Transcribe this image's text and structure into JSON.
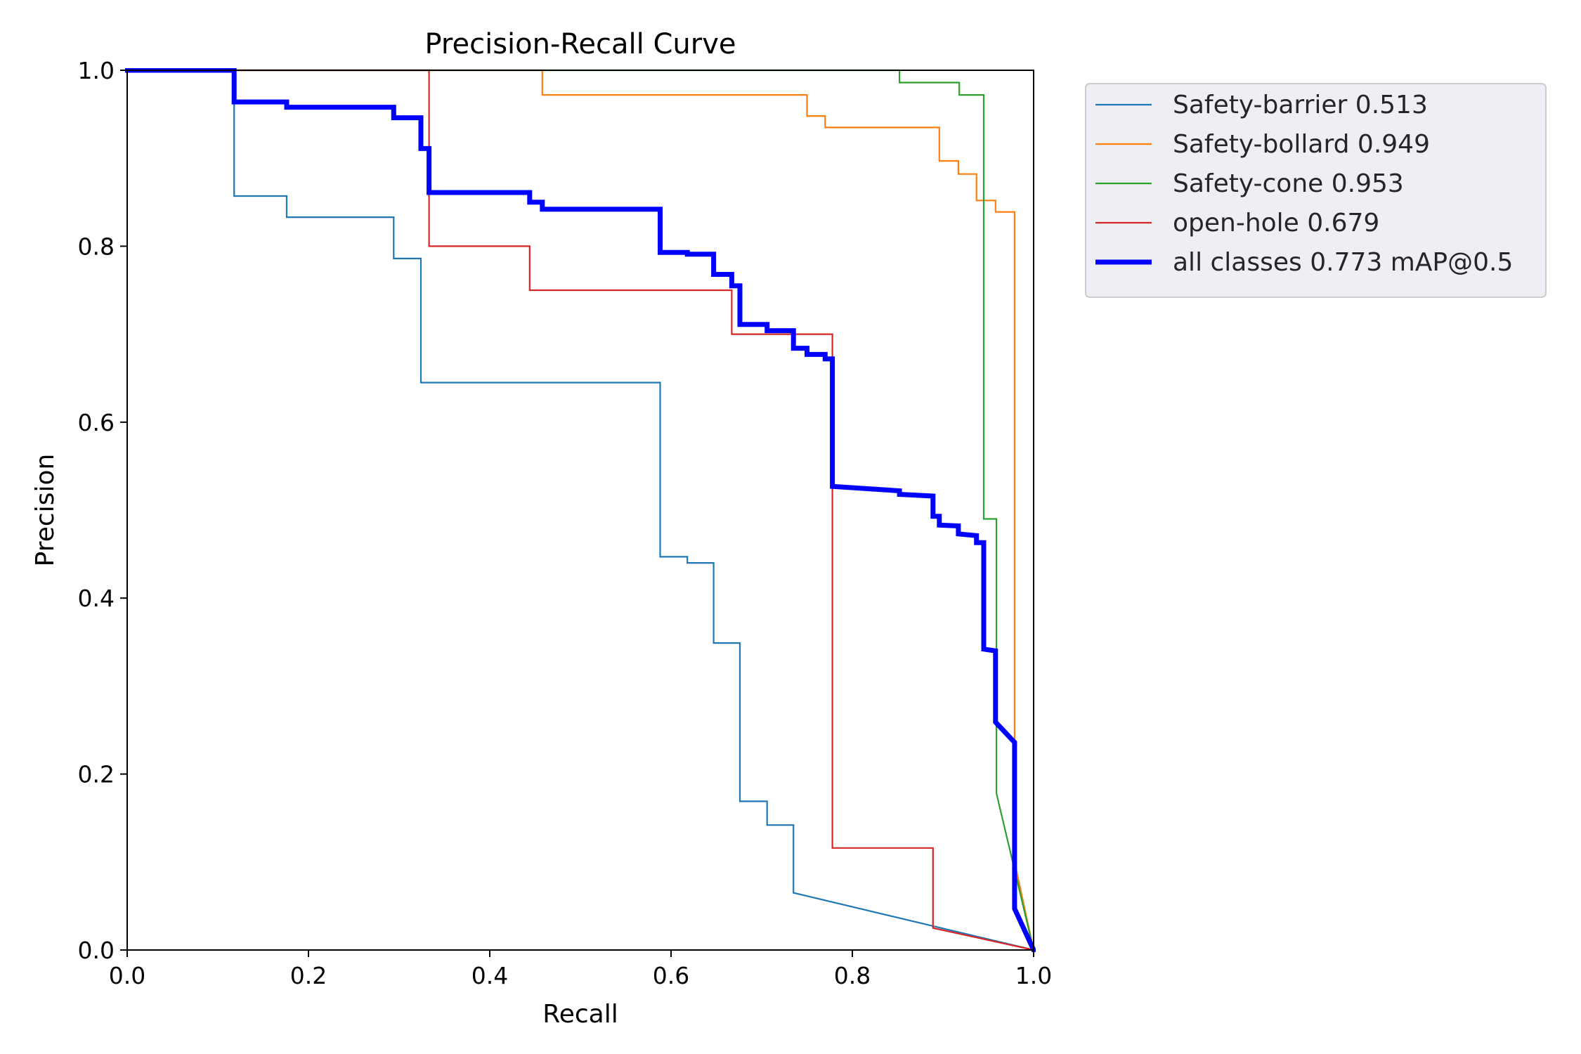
{
  "chart_data": {
    "type": "line",
    "title": "Precision-Recall Curve",
    "xlabel": "Recall",
    "ylabel": "Precision",
    "xlim": [
      0,
      1
    ],
    "ylim": [
      0,
      1
    ],
    "xticks": [
      "0.0",
      "0.2",
      "0.4",
      "0.6",
      "0.8",
      "1.0"
    ],
    "yticks": [
      "0.0",
      "0.2",
      "0.4",
      "0.6",
      "0.8",
      "1.0"
    ],
    "grid": false,
    "legend_position": "outside-right-top",
    "series": [
      {
        "name": "Safety-barrier 0.513",
        "color": "#1f77b4",
        "width": "thin",
        "points": [
          [
            0,
            1
          ],
          [
            0.118,
            1
          ],
          [
            0.118,
            0.857
          ],
          [
            0.176,
            0.857
          ],
          [
            0.176,
            0.833
          ],
          [
            0.294,
            0.833
          ],
          [
            0.294,
            0.786
          ],
          [
            0.324,
            0.786
          ],
          [
            0.324,
            0.645
          ],
          [
            0.588,
            0.645
          ],
          [
            0.588,
            0.447
          ],
          [
            0.618,
            0.447
          ],
          [
            0.618,
            0.44
          ],
          [
            0.647,
            0.44
          ],
          [
            0.647,
            0.349
          ],
          [
            0.676,
            0.349
          ],
          [
            0.676,
            0.169
          ],
          [
            0.706,
            0.169
          ],
          [
            0.706,
            0.142
          ],
          [
            0.735,
            0.142
          ],
          [
            0.735,
            0.065
          ],
          [
            1,
            0
          ]
        ]
      },
      {
        "name": "Safety-bollard 0.949",
        "color": "#ff7f0e",
        "width": "thin",
        "points": [
          [
            0,
            1
          ],
          [
            0.458,
            1
          ],
          [
            0.458,
            0.972
          ],
          [
            0.75,
            0.972
          ],
          [
            0.75,
            0.948
          ],
          [
            0.77,
            0.948
          ],
          [
            0.77,
            0.935
          ],
          [
            0.896,
            0.935
          ],
          [
            0.896,
            0.897
          ],
          [
            0.917,
            0.897
          ],
          [
            0.917,
            0.882
          ],
          [
            0.937,
            0.882
          ],
          [
            0.937,
            0.852
          ],
          [
            0.958,
            0.852
          ],
          [
            0.958,
            0.839
          ],
          [
            0.979,
            0.839
          ],
          [
            0.979,
            0.1
          ],
          [
            1,
            0
          ]
        ]
      },
      {
        "name": "Safety-cone 0.953",
        "color": "#2ca02c",
        "width": "thin",
        "points": [
          [
            0,
            1
          ],
          [
            0.852,
            1
          ],
          [
            0.852,
            0.986
          ],
          [
            0.918,
            0.986
          ],
          [
            0.918,
            0.972
          ],
          [
            0.945,
            0.972
          ],
          [
            0.945,
            0.49
          ],
          [
            0.959,
            0.49
          ],
          [
            0.959,
            0.178
          ],
          [
            1,
            0
          ]
        ]
      },
      {
        "name": "open-hole 0.679",
        "color": "#d62728",
        "width": "thin",
        "points": [
          [
            0,
            1
          ],
          [
            0.333,
            1
          ],
          [
            0.333,
            0.8
          ],
          [
            0.444,
            0.8
          ],
          [
            0.444,
            0.75
          ],
          [
            0.667,
            0.75
          ],
          [
            0.667,
            0.7
          ],
          [
            0.778,
            0.7
          ],
          [
            0.778,
            0.116
          ],
          [
            0.889,
            0.116
          ],
          [
            0.889,
            0.025
          ],
          [
            1,
            0
          ]
        ]
      },
      {
        "name": "all classes 0.773 mAP@0.5",
        "color": "#0000ff",
        "width": "thick",
        "points": [
          [
            0,
            1
          ],
          [
            0.118,
            1
          ],
          [
            0.118,
            0.964
          ],
          [
            0.176,
            0.964
          ],
          [
            0.176,
            0.958
          ],
          [
            0.294,
            0.958
          ],
          [
            0.294,
            0.946
          ],
          [
            0.324,
            0.946
          ],
          [
            0.324,
            0.911
          ],
          [
            0.333,
            0.911
          ],
          [
            0.333,
            0.861
          ],
          [
            0.444,
            0.861
          ],
          [
            0.444,
            0.85
          ],
          [
            0.458,
            0.85
          ],
          [
            0.458,
            0.842
          ],
          [
            0.588,
            0.842
          ],
          [
            0.588,
            0.793
          ],
          [
            0.618,
            0.793
          ],
          [
            0.618,
            0.791
          ],
          [
            0.647,
            0.791
          ],
          [
            0.647,
            0.768
          ],
          [
            0.667,
            0.768
          ],
          [
            0.667,
            0.755
          ],
          [
            0.676,
            0.755
          ],
          [
            0.676,
            0.711
          ],
          [
            0.706,
            0.711
          ],
          [
            0.706,
            0.704
          ],
          [
            0.735,
            0.704
          ],
          [
            0.735,
            0.684
          ],
          [
            0.75,
            0.684
          ],
          [
            0.75,
            0.677
          ],
          [
            0.77,
            0.677
          ],
          [
            0.77,
            0.672
          ],
          [
            0.778,
            0.672
          ],
          [
            0.778,
            0.527
          ],
          [
            0.852,
            0.522
          ],
          [
            0.852,
            0.518
          ],
          [
            0.889,
            0.516
          ],
          [
            0.889,
            0.493
          ],
          [
            0.896,
            0.493
          ],
          [
            0.896,
            0.483
          ],
          [
            0.917,
            0.482
          ],
          [
            0.917,
            0.473
          ],
          [
            0.937,
            0.471
          ],
          [
            0.937,
            0.463
          ],
          [
            0.945,
            0.463
          ],
          [
            0.945,
            0.342
          ],
          [
            0.958,
            0.34
          ],
          [
            0.958,
            0.259
          ],
          [
            0.979,
            0.236
          ],
          [
            0.979,
            0.047
          ],
          [
            1,
            0
          ]
        ]
      }
    ]
  }
}
